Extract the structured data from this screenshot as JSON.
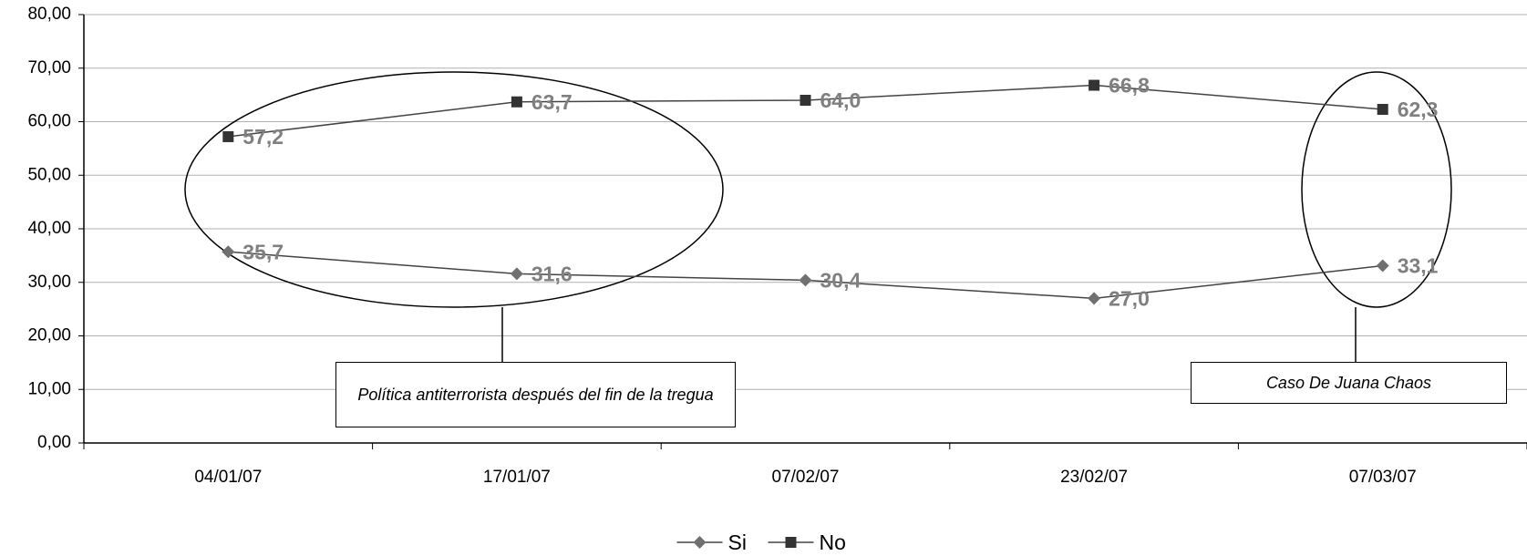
{
  "chart_data": {
    "type": "line",
    "categories": [
      "04/01/07",
      "17/01/07",
      "07/02/07",
      "23/02/07",
      "07/03/07"
    ],
    "series": [
      {
        "name": "Si",
        "color": "#707070",
        "marker": "diamond",
        "values": [
          35.7,
          31.6,
          30.4,
          27.0,
          33.1
        ],
        "value_labels": [
          "35,7",
          "31,6",
          "30,4",
          "27,0",
          "33,1"
        ]
      },
      {
        "name": "No",
        "color": "#333333",
        "marker": "square",
        "values": [
          57.2,
          63.7,
          64.0,
          66.8,
          62.3
        ],
        "value_labels": [
          "57,2",
          "63,7",
          "64,0",
          "66,8",
          "62,3"
        ]
      }
    ],
    "ylim": [
      0,
      80
    ],
    "yticks": [
      {
        "value": 0,
        "label": "0,00"
      },
      {
        "value": 10,
        "label": "10,00"
      },
      {
        "value": 20,
        "label": "20,00"
      },
      {
        "value": 30,
        "label": "30,00"
      },
      {
        "value": 40,
        "label": "40,00"
      },
      {
        "value": 50,
        "label": "50,00"
      },
      {
        "value": 60,
        "label": "60,00"
      },
      {
        "value": 70,
        "label": "70,00"
      },
      {
        "value": 80,
        "label": "80,00"
      }
    ],
    "grid": true,
    "legend": "bottom",
    "annotations": [
      "Política antiterrorista después del fin de la tregua",
      "Caso De Juana Chaos"
    ]
  }
}
